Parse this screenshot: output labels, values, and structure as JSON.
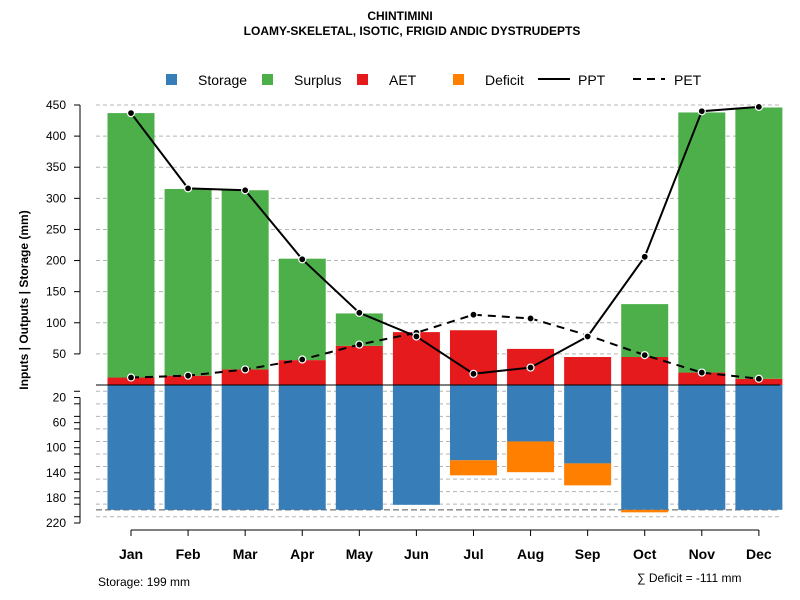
{
  "chart_data": {
    "type": "bar",
    "title": "CHINTIMINI",
    "subtitle": "LOAMY-SKELETAL, ISOTIC, FRIGID ANDIC DYSTRUDEPTS",
    "ylabel": "Inputs | Outputs | Storage    (mm)",
    "categories": [
      "Jan",
      "Feb",
      "Mar",
      "Apr",
      "May",
      "Jun",
      "Jul",
      "Aug",
      "Sep",
      "Oct",
      "Nov",
      "Dec"
    ],
    "legend": [
      {
        "name": "Storage",
        "type": "box",
        "color": "#377EB8"
      },
      {
        "name": "Surplus",
        "type": "box",
        "color": "#4DAF4A"
      },
      {
        "name": "AET",
        "type": "box",
        "color": "#E41A1C"
      },
      {
        "name": "Deficit",
        "type": "box",
        "color": "#FF7F00"
      },
      {
        "name": "PPT",
        "type": "solid-line",
        "color": "#000000"
      },
      {
        "name": "PET",
        "type": "dashed-line",
        "color": "#000000"
      }
    ],
    "upper_axis": {
      "ylim": [
        0,
        450
      ],
      "ticks": [
        50,
        100,
        150,
        200,
        250,
        300,
        350,
        400,
        450
      ]
    },
    "lower_axis": {
      "ylim": [
        0,
        220
      ],
      "ticks": [
        20,
        60,
        100,
        140,
        180,
        220
      ],
      "direction": "downward"
    },
    "series": [
      {
        "name": "AET",
        "values": [
          12,
          15,
          25,
          40,
          63,
          85,
          88,
          58,
          45,
          45,
          20,
          10
        ]
      },
      {
        "name": "Surplus",
        "values": [
          425,
          300,
          288,
          163,
          52,
          0,
          0,
          0,
          0,
          85,
          418,
          436
        ]
      },
      {
        "name": "Storage",
        "values": [
          199,
          199,
          199,
          199,
          199,
          191,
          120,
          90,
          125,
          199,
          199,
          199
        ]
      },
      {
        "name": "Deficit",
        "values": [
          0,
          0,
          0,
          0,
          0,
          0,
          24,
          49,
          35,
          4,
          0,
          0
        ]
      },
      {
        "name": "PPT",
        "values": [
          437,
          316,
          313,
          202,
          116,
          78,
          18,
          28,
          78,
          206,
          440,
          447
        ]
      },
      {
        "name": "PET",
        "values": [
          12,
          15,
          25,
          41,
          65,
          84,
          113,
          107,
          80,
          48,
          20,
          10
        ]
      }
    ],
    "storage_capacity": 199,
    "footer_left": "Storage: 199 mm",
    "footer_right": "∑ Deficit = -111 mm"
  }
}
